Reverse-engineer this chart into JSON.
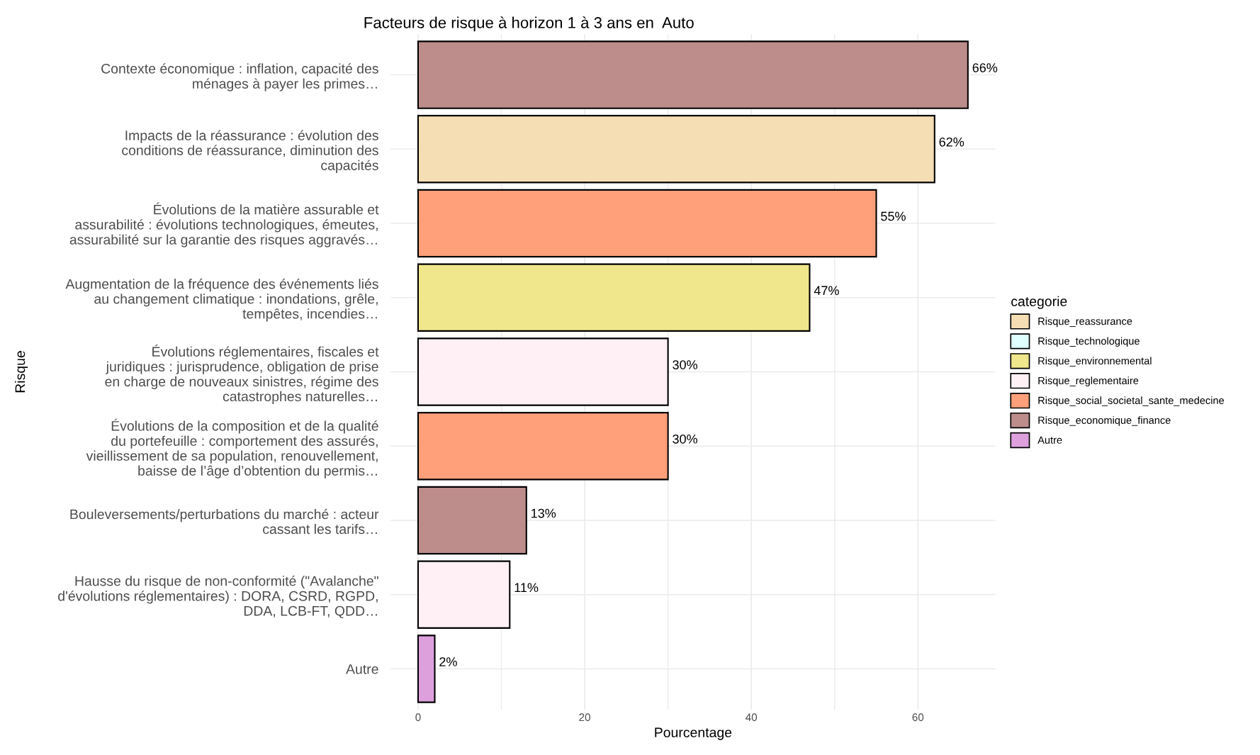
{
  "chart_data": {
    "type": "bar",
    "orientation": "horizontal",
    "title": "Facteurs de risque à horizon 1 à 3 ans en  Auto",
    "xlabel": "Pourcentage",
    "ylabel": "Risque",
    "legend_title": "categorie",
    "legend": "right",
    "grid": true,
    "categories": [
      "Contexte économique : inflation, capacité des\nménages à payer les primes…",
      "Impacts de la réassurance : évolution des\nconditions de réassurance, diminution des\ncapacités",
      "Évolutions de la matière assurable et\nassurabilité : évolutions technologiques, émeutes,\nassurabilité sur la garantie des risques aggravés…",
      "Augmentation de la fréquence des événements liés\nau changement climatique : inondations, grêle,\ntempêtes, incendies…",
      "Évolutions réglementaires, fiscales et\njuridiques : jurisprudence, obligation de prise\nen charge de nouveaux sinistres, régime des\ncatastrophes naturelles…",
      "Évolutions de la composition et de la qualité\ndu portefeuille : comportement des assurés,\nvieillissement de sa population, renouvellement,\nbaisse de l’âge d’obtention du permis…",
      "Bouleversements/perturbations du marché : acteur\ncassant les tarifs…",
      "Hausse du risque de non-conformité (\"Avalanche\"\nd'évolutions réglementaires) : DORA, CSRD, RGPD,\nDDA, LCB-FT, QDD…",
      "Autre"
    ],
    "series": [
      {
        "name": "Risque_reassurance",
        "color": "#f5deb3",
        "values": [
          null,
          62,
          null,
          null,
          null,
          null,
          null,
          null,
          null
        ],
        "value_labels": [
          null,
          "62%",
          null,
          null,
          null,
          null,
          null,
          null,
          null
        ]
      },
      {
        "name": "Risque_technologique",
        "color": "#e0ffff",
        "values": [
          null,
          null,
          null,
          null,
          null,
          null,
          null,
          null,
          null
        ],
        "value_labels": [
          null,
          null,
          null,
          null,
          null,
          null,
          null,
          null,
          null
        ]
      },
      {
        "name": "Risque_environnemental",
        "color": "#f0e68c",
        "values": [
          null,
          null,
          null,
          47,
          null,
          null,
          null,
          null,
          null
        ],
        "value_labels": [
          null,
          null,
          null,
          "47%",
          null,
          null,
          null,
          null,
          null
        ]
      },
      {
        "name": "Risque_reglementaire",
        "color": "#fff0f5",
        "values": [
          null,
          null,
          null,
          null,
          30,
          null,
          null,
          11,
          null
        ],
        "value_labels": [
          null,
          null,
          null,
          null,
          "30%",
          null,
          null,
          "11%",
          null
        ]
      },
      {
        "name": "Risque_social_societal_sante_medecine",
        "color": "#ffa07a",
        "values": [
          null,
          null,
          55,
          null,
          null,
          30,
          null,
          null,
          null
        ],
        "value_labels": [
          null,
          null,
          "55%",
          null,
          null,
          "30%",
          null,
          null,
          null
        ]
      },
      {
        "name": "Risque_economique_finance",
        "color": "#bc8d8b",
        "values": [
          66,
          null,
          null,
          null,
          null,
          null,
          13,
          null,
          null
        ],
        "value_labels": [
          "66%",
          null,
          null,
          null,
          null,
          null,
          "13%",
          null,
          null
        ]
      },
      {
        "name": "Autre",
        "color": "#dda0dd",
        "values": [
          null,
          null,
          null,
          null,
          null,
          null,
          null,
          null,
          2
        ],
        "value_labels": [
          null,
          null,
          null,
          null,
          null,
          null,
          null,
          null,
          "2%"
        ]
      }
    ],
    "xlim": [
      -3.3,
      69.3
    ],
    "xticks": [
      0,
      20,
      40,
      60
    ]
  }
}
